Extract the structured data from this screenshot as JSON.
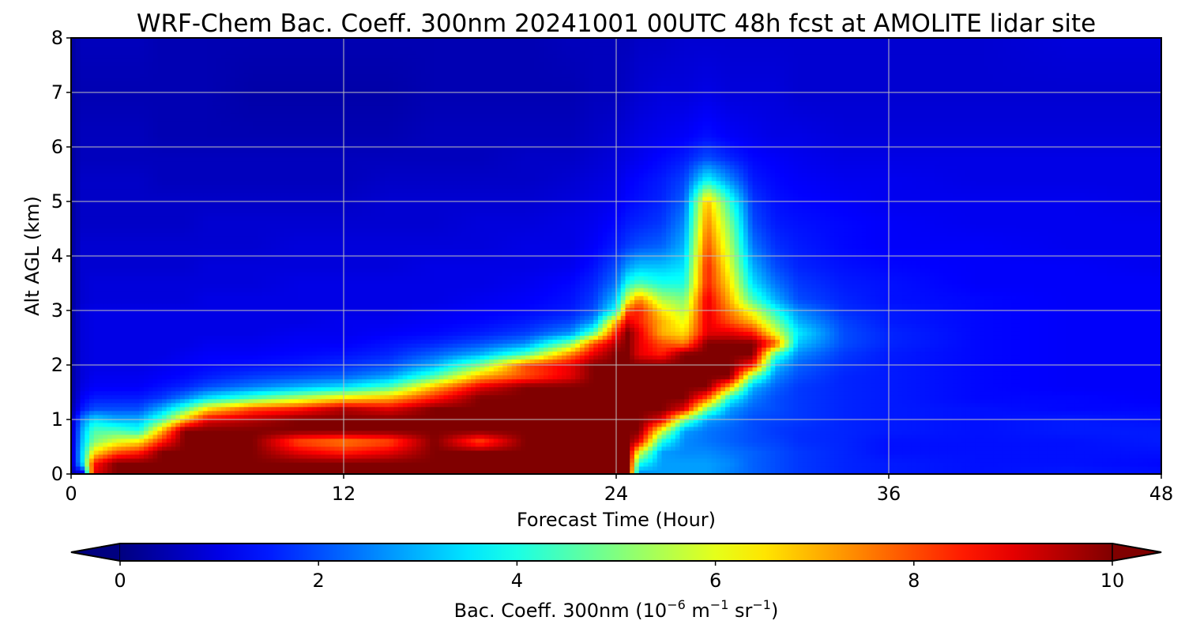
{
  "chart_data": {
    "type": "heatmap",
    "title": "WRF-Chem Bac. Coeff. 300nm  20241001 00UTC 48h fcst at AMOLITE lidar site",
    "xlabel": "Forecast Time (Hour)",
    "ylabel": "Alt AGL (km)",
    "xlim": [
      0,
      48
    ],
    "ylim": [
      0,
      8
    ],
    "xticks": [
      0,
      12,
      24,
      36,
      48
    ],
    "yticks": [
      0,
      1,
      2,
      3,
      4,
      5,
      6,
      7,
      8
    ],
    "grid": true,
    "colormap": "jet",
    "colorbar": {
      "label_prefix": "Bac. Coeff. 300nm  (10",
      "label_exp1": "−6",
      "label_mid": " m",
      "label_exp2": "−1",
      "label_mid2": " sr",
      "label_exp3": "−1",
      "label_suffix": ")",
      "range": [
        0,
        10
      ],
      "ticks": [
        0,
        2,
        4,
        6,
        8,
        10
      ],
      "extend": "both",
      "orientation": "horizontal"
    },
    "x": [
      0,
      0.5,
      1,
      2,
      3,
      4,
      5,
      6,
      8,
      10,
      12,
      14,
      16,
      18,
      20,
      22,
      23,
      24,
      24.5,
      25,
      26,
      27,
      28,
      29,
      30,
      31,
      32,
      34,
      36,
      40,
      44,
      48
    ],
    "y": [
      0,
      0.2,
      0.4,
      0.6,
      0.8,
      1.0,
      1.2,
      1.4,
      1.6,
      1.8,
      2.0,
      2.2,
      2.4,
      2.6,
      2.8,
      3.0,
      3.2,
      3.5,
      3.8,
      4.2,
      4.6,
      5.0,
      5.4,
      5.8,
      6.2,
      7.0,
      8.0
    ],
    "values": [
      [
        0.5,
        0.8,
        9,
        10,
        10,
        10,
        10,
        10,
        10,
        10,
        10,
        10,
        10,
        10,
        10,
        10,
        10,
        10,
        10,
        2.5,
        2.8,
        2.8,
        2.8,
        2.5,
        2.2,
        2.0,
        1.8,
        1.6,
        1.5,
        1.4,
        1.5,
        1.4
      ],
      [
        0.5,
        3.5,
        8.5,
        10,
        10,
        10,
        10,
        10,
        10,
        10,
        10,
        10,
        10,
        10,
        10,
        10,
        10,
        10,
        10,
        4,
        2.8,
        2.8,
        2.8,
        2.6,
        2.2,
        2.0,
        1.8,
        1.6,
        1.5,
        1.4,
        1.4,
        1.3
      ],
      [
        0.5,
        3.5,
        6.5,
        8,
        8.5,
        10,
        10,
        10,
        10,
        9,
        8.5,
        9,
        10,
        10,
        10,
        10,
        10,
        10,
        10,
        6,
        2.8,
        2.6,
        2.6,
        2.4,
        2.2,
        2.0,
        1.8,
        1.6,
        1.4,
        1.4,
        1.4,
        1.4
      ],
      [
        0.5,
        3.2,
        5,
        6,
        6.5,
        8.5,
        10,
        10,
        10,
        8,
        7.5,
        8,
        10,
        8,
        10,
        10,
        10,
        10,
        10,
        9,
        4,
        2.6,
        2.4,
        2.2,
        2.0,
        1.9,
        1.7,
        1.6,
        1.4,
        1.4,
        1.4,
        1.5
      ],
      [
        0.5,
        3,
        4.5,
        4.5,
        4,
        7,
        10,
        10,
        10,
        10,
        10,
        10,
        10,
        10,
        10,
        10,
        10,
        10,
        10,
        10,
        6,
        2.8,
        2.4,
        2.2,
        2.0,
        1.8,
        1.7,
        1.6,
        1.5,
        1.4,
        1.5,
        1.5
      ],
      [
        0.5,
        2.5,
        3.5,
        3,
        3,
        4.5,
        7,
        9,
        9.5,
        10,
        10,
        10,
        10,
        10,
        10,
        10,
        10,
        10,
        10,
        10,
        9,
        5,
        2.8,
        2.4,
        2.0,
        1.9,
        1.8,
        1.6,
        1.5,
        1.4,
        1.5,
        1.4
      ],
      [
        0.4,
        1.5,
        2,
        2,
        2,
        3,
        4.5,
        6.5,
        8,
        8.5,
        9.5,
        9,
        10,
        10,
        10,
        10,
        10,
        10,
        10,
        10,
        10,
        9,
        5,
        2.8,
        2.2,
        2.0,
        1.8,
        1.6,
        1.5,
        1.4,
        1.3,
        1.3
      ],
      [
        0.3,
        1.2,
        1.5,
        1.5,
        1.5,
        1.8,
        2.5,
        3.5,
        4.5,
        5.5,
        6.5,
        7,
        8.5,
        10,
        10,
        10,
        10,
        10,
        10,
        10,
        10,
        10,
        8,
        4,
        2.5,
        2.0,
        1.8,
        1.6,
        1.5,
        1.3,
        1.3,
        1.2
      ],
      [
        0.3,
        1.0,
        1.2,
        1.2,
        1.2,
        1.4,
        1.6,
        2.0,
        2.5,
        3.0,
        3.5,
        4.5,
        7,
        9,
        10,
        10,
        10,
        10,
        10,
        10,
        10,
        10,
        10,
        7,
        3.0,
        2.2,
        1.8,
        1.6,
        1.5,
        1.3,
        1.2,
        1.2
      ],
      [
        0.3,
        0.9,
        1.1,
        1.1,
        1.1,
        1.2,
        1.3,
        1.5,
        1.8,
        2.0,
        2.2,
        2.8,
        4.5,
        7,
        8,
        9,
        10,
        10,
        10,
        10,
        10,
        10,
        10,
        10,
        5,
        2.6,
        2.0,
        1.6,
        1.5,
        1.3,
        1.2,
        1.2
      ],
      [
        0.3,
        0.9,
        1.0,
        1.0,
        1.0,
        1.1,
        1.2,
        1.3,
        1.4,
        1.5,
        1.7,
        2.0,
        3.0,
        5,
        8,
        9,
        10,
        10,
        10,
        10,
        10,
        10,
        10,
        10,
        8.5,
        3.2,
        2.2,
        1.7,
        1.5,
        1.3,
        1.2,
        1.2
      ],
      [
        0.3,
        0.9,
        1.0,
        1.0,
        1.0,
        1.0,
        1.1,
        1.2,
        1.2,
        1.3,
        1.4,
        1.6,
        2.2,
        3.0,
        4.5,
        7.5,
        9,
        10,
        10,
        9,
        8.5,
        10,
        10,
        10,
        10,
        4.5,
        2.6,
        1.8,
        1.5,
        1.3,
        1.2,
        1.2
      ],
      [
        0.3,
        0.9,
        1.0,
        1.0,
        1.0,
        1.0,
        1.0,
        1.1,
        1.1,
        1.2,
        1.2,
        1.4,
        1.6,
        2.0,
        2.6,
        5,
        8,
        9.5,
        10,
        9,
        8,
        7.5,
        10,
        10,
        10,
        8,
        3.2,
        2.0,
        1.6,
        1.3,
        1.2,
        1.2
      ],
      [
        0.3,
        0.9,
        1.0,
        1.0,
        1.0,
        1.0,
        1.0,
        1.0,
        1.0,
        1.1,
        1.1,
        1.2,
        1.3,
        1.5,
        1.8,
        2.6,
        4.5,
        8.5,
        10,
        9,
        7,
        6.5,
        9,
        9,
        8.5,
        6,
        3.6,
        2.0,
        1.6,
        1.3,
        1.2,
        1.2
      ],
      [
        0.3,
        0.9,
        1.0,
        1.0,
        1.0,
        1.0,
        1.0,
        1.0,
        1.0,
        1.0,
        1.1,
        1.1,
        1.2,
        1.3,
        1.5,
        1.9,
        2.8,
        7,
        9,
        8.5,
        7,
        6,
        9,
        8,
        7,
        5,
        3.0,
        1.9,
        1.5,
        1.3,
        1.2,
        1.2
      ],
      [
        0.3,
        0.9,
        1.0,
        1.0,
        1.0,
        1.0,
        1.0,
        1.0,
        1.0,
        1.0,
        1.0,
        1.0,
        1.1,
        1.2,
        1.3,
        1.5,
        2.0,
        4,
        8,
        8.5,
        6.5,
        5.5,
        9,
        7.5,
        6,
        4,
        2.6,
        1.7,
        1.5,
        1.3,
        1.2,
        1.2
      ],
      [
        0.3,
        0.8,
        0.9,
        0.9,
        0.9,
        0.9,
        0.9,
        1.0,
        1.0,
        1.0,
        1.0,
        1.0,
        1.0,
        1.1,
        1.2,
        1.4,
        1.8,
        3.2,
        6,
        7.5,
        5.5,
        5,
        9,
        7,
        4.5,
        3.0,
        2.0,
        1.6,
        1.4,
        1.3,
        1.2,
        1.2
      ],
      [
        0.3,
        0.8,
        0.9,
        0.9,
        0.9,
        0.9,
        0.9,
        0.9,
        0.9,
        1.0,
        1.0,
        1.0,
        1.0,
        1.0,
        1.1,
        1.3,
        1.6,
        2.4,
        4,
        4.5,
        4,
        4,
        8.5,
        6.5,
        3.5,
        2.4,
        1.8,
        1.5,
        1.4,
        1.2,
        1.2,
        1.2
      ],
      [
        0.3,
        0.8,
        0.8,
        0.8,
        0.8,
        0.8,
        0.8,
        0.9,
        0.9,
        0.9,
        0.9,
        0.9,
        1.0,
        1.0,
        1.0,
        1.1,
        1.4,
        2.0,
        2.8,
        3.2,
        3.2,
        3.5,
        8.5,
        6,
        3.0,
        2.0,
        1.6,
        1.4,
        1.3,
        1.2,
        1.2,
        1.1
      ],
      [
        0.3,
        0.8,
        0.8,
        0.8,
        0.8,
        0.8,
        0.8,
        0.8,
        0.8,
        0.9,
        0.9,
        0.9,
        0.9,
        0.9,
        1.0,
        1.0,
        1.2,
        1.5,
        1.8,
        2.0,
        2.2,
        3.0,
        8,
        5.5,
        2.4,
        1.7,
        1.5,
        1.3,
        1.2,
        1.2,
        1.1,
        1.1
      ],
      [
        0.3,
        0.7,
        0.7,
        0.7,
        0.7,
        0.7,
        0.7,
        0.8,
        0.8,
        0.8,
        0.8,
        0.8,
        0.8,
        0.9,
        0.9,
        1.0,
        1.1,
        1.3,
        1.5,
        1.6,
        1.8,
        2.6,
        7.5,
        5,
        2.0,
        1.5,
        1.4,
        1.3,
        1.2,
        1.1,
        1.1,
        1.1
      ],
      [
        0.3,
        0.7,
        0.7,
        0.7,
        0.7,
        0.7,
        0.7,
        0.7,
        0.7,
        0.7,
        0.7,
        0.8,
        0.8,
        0.8,
        0.8,
        0.9,
        1.0,
        1.1,
        1.3,
        1.4,
        1.6,
        2.2,
        7,
        4.2,
        1.8,
        1.4,
        1.3,
        1.2,
        1.1,
        1.1,
        1.1,
        1.0
      ],
      [
        0.3,
        0.7,
        0.7,
        0.7,
        0.7,
        0.6,
        0.6,
        0.6,
        0.6,
        0.6,
        0.6,
        0.7,
        0.7,
        0.7,
        0.7,
        0.8,
        0.9,
        1.0,
        1.2,
        1.3,
        1.5,
        1.9,
        3.8,
        2.6,
        1.5,
        1.3,
        1.2,
        1.1,
        1.1,
        1.0,
        1.0,
        1.0
      ],
      [
        0.3,
        0.6,
        0.6,
        0.6,
        0.6,
        0.6,
        0.6,
        0.6,
        0.6,
        0.6,
        0.6,
        0.6,
        0.6,
        0.6,
        0.7,
        0.7,
        0.8,
        0.9,
        1.0,
        1.1,
        1.3,
        1.5,
        2.0,
        1.6,
        1.3,
        1.2,
        1.1,
        1.0,
        1.0,
        1.0,
        1.0,
        1.0
      ],
      [
        0.3,
        0.6,
        0.6,
        0.6,
        0.6,
        0.5,
        0.5,
        0.5,
        0.5,
        0.5,
        0.5,
        0.5,
        0.6,
        0.6,
        0.6,
        0.6,
        0.7,
        0.8,
        0.9,
        1.0,
        1.1,
        1.2,
        1.4,
        1.2,
        1.1,
        1.0,
        1.0,
        0.9,
        0.9,
        0.9,
        0.9,
        0.9
      ],
      [
        0.3,
        0.5,
        0.5,
        0.5,
        0.5,
        0.5,
        0.5,
        0.5,
        0.4,
        0.4,
        0.4,
        0.4,
        0.5,
        0.5,
        0.5,
        0.5,
        0.6,
        0.6,
        0.7,
        0.8,
        0.9,
        0.9,
        1.0,
        0.9,
        0.9,
        0.9,
        0.8,
        0.8,
        0.8,
        0.8,
        0.8,
        0.8
      ],
      [
        0.3,
        0.6,
        0.6,
        0.6,
        0.6,
        0.5,
        0.5,
        0.5,
        0.5,
        0.5,
        0.5,
        0.5,
        0.5,
        0.5,
        0.5,
        0.6,
        0.6,
        0.6,
        0.6,
        0.7,
        0.7,
        0.8,
        0.8,
        0.8,
        0.8,
        0.8,
        0.8,
        0.8,
        0.8,
        0.8,
        0.9,
        0.9
      ]
    ]
  }
}
